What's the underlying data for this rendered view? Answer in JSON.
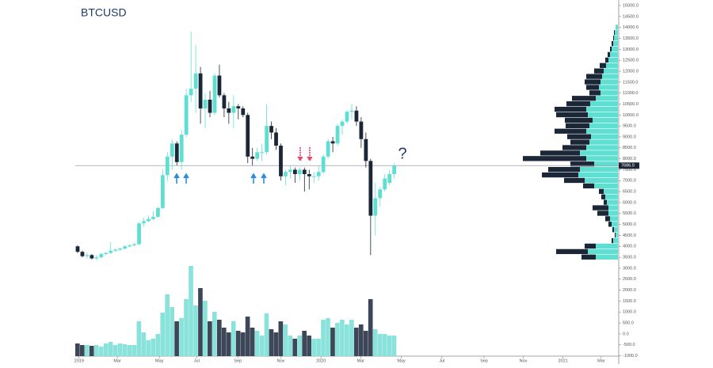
{
  "chart_data": {
    "type": "candlestick",
    "title": "BTCUSD",
    "annotation": "?",
    "last_price": 7686.9,
    "colors": {
      "up": "#5fdfd2",
      "down": "#1b2636",
      "volume_up": "#8ae3db",
      "volume_down": "#3e4757",
      "title": "#1d3b6b",
      "annotation": "#1d3b6b"
    },
    "xlim": [
      -0.5,
      114.5
    ],
    "xticks": [
      {
        "value": 0.3,
        "label": "2019"
      },
      {
        "value": 8.4,
        "label": "Mar"
      },
      {
        "value": 17.3,
        "label": "May"
      },
      {
        "value": 25.2,
        "label": "Jul"
      },
      {
        "value": 33.9,
        "label": "Sep"
      },
      {
        "value": 43,
        "label": "Nov"
      },
      {
        "value": 51.5,
        "label": "2020"
      },
      {
        "value": 59.9,
        "label": "Mar"
      },
      {
        "value": 68.5,
        "label": "May"
      },
      {
        "value": 77.1,
        "label": "Jul"
      },
      {
        "value": 86,
        "label": "Sep"
      },
      {
        "value": 94.3,
        "label": "Nov"
      },
      {
        "value": 102.7,
        "label": "2021"
      },
      {
        "value": 110.8,
        "label": "Mar"
      }
    ],
    "ylim": [
      -1377,
      15253
    ],
    "yticks": [
      {
        "value": 15000,
        "label": "15000.0"
      },
      {
        "value": 14500,
        "label": "14500.0"
      },
      {
        "value": 14000,
        "label": "14000.0"
      },
      {
        "value": 13500,
        "label": "13500.0"
      },
      {
        "value": 13000,
        "label": "13000.0"
      },
      {
        "value": 12500,
        "label": "12500.0"
      },
      {
        "value": 12000,
        "label": "12000.0"
      },
      {
        "value": 11500,
        "label": "11500.0"
      },
      {
        "value": 11000,
        "label": "11000.0"
      },
      {
        "value": 10500,
        "label": "10500.0"
      },
      {
        "value": 10000,
        "label": "10000.0"
      },
      {
        "value": 9500,
        "label": "9500.0"
      },
      {
        "value": 9000,
        "label": "9000.0"
      },
      {
        "value": 8500,
        "label": "8500.0"
      },
      {
        "value": 8000,
        "label": "8000.0"
      },
      {
        "value": 7500,
        "label": "7500.0"
      },
      {
        "value": 7000,
        "label": "7000.0"
      },
      {
        "value": 6500,
        "label": "6500.0"
      },
      {
        "value": 6000,
        "label": "6000.0"
      },
      {
        "value": 5500,
        "label": "5500.0"
      },
      {
        "value": 5000,
        "label": "5000.0"
      },
      {
        "value": 4500,
        "label": "4500.0"
      },
      {
        "value": 4000,
        "label": "4000.0"
      },
      {
        "value": 3500,
        "label": "3500.0"
      },
      {
        "value": 3000,
        "label": "3000.0"
      },
      {
        "value": 2500,
        "label": "2500.0"
      },
      {
        "value": 2000,
        "label": "2000.0"
      },
      {
        "value": 1500,
        "label": "1500.0"
      },
      {
        "value": 1000,
        "label": "1000.0"
      },
      {
        "value": 500,
        "label": "500.0"
      },
      {
        "value": 0,
        "label": "0.0"
      },
      {
        "value": -500,
        "label": "-500.0"
      },
      {
        "value": -1000,
        "label": "-1000.0"
      }
    ],
    "candles": [
      [
        4000,
        4050,
        3700,
        3750
      ],
      [
        3750,
        3800,
        3500,
        3550
      ],
      [
        3550,
        3700,
        3450,
        3600
      ],
      [
        3600,
        3650,
        3400,
        3450
      ],
      [
        3450,
        3600,
        3350,
        3500
      ],
      [
        3500,
        3700,
        3450,
        3650
      ],
      [
        3650,
        3750,
        3600,
        3700
      ],
      [
        3700,
        4200,
        3650,
        3800
      ],
      [
        3800,
        3900,
        3750,
        3850
      ],
      [
        3850,
        3950,
        3800,
        3900
      ],
      [
        3900,
        4050,
        3850,
        4000
      ],
      [
        4000,
        4100,
        3950,
        4050
      ],
      [
        4050,
        4150,
        4000,
        4100
      ],
      [
        4100,
        5100,
        4050,
        5050
      ],
      [
        5050,
        5300,
        4900,
        5150
      ],
      [
        5150,
        5400,
        5100,
        5250
      ],
      [
        5250,
        5600,
        5200,
        5350
      ],
      [
        5350,
        5800,
        5300,
        5750
      ],
      [
        5750,
        7500,
        5700,
        7250
      ],
      [
        7250,
        8300,
        7000,
        8100
      ],
      [
        8100,
        8900,
        7500,
        8700
      ],
      [
        8700,
        8800,
        7700,
        7850
      ],
      [
        7850,
        9300,
        7500,
        9100
      ],
      [
        9100,
        11200,
        9000,
        10900
      ],
      [
        10900,
        13800,
        10600,
        11200
      ],
      [
        11200,
        13200,
        10100,
        11900
      ],
      [
        11900,
        12200,
        9600,
        10300
      ],
      [
        10300,
        11000,
        9400,
        10700
      ],
      [
        10700,
        11100,
        9900,
        10100
      ],
      [
        10100,
        11900,
        10000,
        11800
      ],
      [
        11800,
        12300,
        10800,
        10900
      ],
      [
        10900,
        11000,
        9900,
        10300
      ],
      [
        10300,
        10600,
        9600,
        10100
      ],
      [
        10100,
        10900,
        9400,
        10400
      ],
      [
        10400,
        10500,
        9800,
        10300
      ],
      [
        10300,
        10400,
        9900,
        10000
      ],
      [
        10000,
        10100,
        7800,
        8100
      ],
      [
        8100,
        8500,
        7700,
        8000
      ],
      [
        8000,
        8500,
        7900,
        8300
      ],
      [
        8300,
        8700,
        7900,
        8300
      ],
      [
        8300,
        10500,
        8200,
        9500
      ],
      [
        9500,
        9700,
        8900,
        9200
      ],
      [
        9200,
        9400,
        8400,
        8600
      ],
      [
        8600,
        8700,
        7000,
        7200
      ],
      [
        7200,
        7500,
        6800,
        7400
      ],
      [
        7400,
        7700,
        7100,
        7500
      ],
      [
        7500,
        7600,
        6900,
        7300
      ],
      [
        7300,
        7600,
        7000,
        7500
      ],
      [
        7500,
        7600,
        6500,
        7300
      ],
      [
        7300,
        7500,
        6600,
        7200
      ],
      [
        7200,
        7400,
        6900,
        7200
      ],
      [
        7200,
        7700,
        7000,
        7400
      ],
      [
        7400,
        8200,
        7300,
        8100
      ],
      [
        8100,
        8900,
        8000,
        8800
      ],
      [
        8800,
        9000,
        8300,
        8700
      ],
      [
        8700,
        9600,
        8600,
        9500
      ],
      [
        9500,
        9800,
        9100,
        9700
      ],
      [
        9700,
        10200,
        9600,
        10150
      ],
      [
        10150,
        10500,
        9800,
        10200
      ],
      [
        10200,
        10400,
        9500,
        9700
      ],
      [
        9700,
        9900,
        8500,
        8900
      ],
      [
        8900,
        9200,
        7600,
        7900
      ],
      [
        7900,
        8000,
        3600,
        5400
      ],
      [
        5400,
        6900,
        4500,
        6200
      ],
      [
        6200,
        6700,
        5800,
        6600
      ],
      [
        6600,
        7300,
        6500,
        7100
      ],
      [
        6900,
        7500,
        6800,
        7300
      ],
      [
        7300,
        7800,
        7100,
        7686.9
      ]
    ],
    "y2lim": [
      0,
      120
    ],
    "volume": [
      16,
      14,
      14,
      13,
      14,
      12,
      16,
      18,
      14,
      16,
      15,
      14,
      14,
      44,
      30,
      20,
      22,
      28,
      55,
      78,
      62,
      44,
      48,
      72,
      114,
      64,
      86,
      70,
      44,
      56,
      46,
      36,
      30,
      44,
      32,
      30,
      50,
      36,
      32,
      26,
      54,
      34,
      30,
      44,
      40,
      26,
      22,
      26,
      32,
      26,
      22,
      22,
      46,
      48,
      36,
      42,
      46,
      40,
      46,
      36,
      40,
      32,
      72,
      34,
      28,
      28,
      26,
      26
    ],
    "plim": [
      0,
      130
    ],
    "profile": {
      "levels": [
        14000,
        13750,
        13500,
        13250,
        13000,
        12750,
        12500,
        12250,
        12000,
        11750,
        11500,
        11250,
        11000,
        10750,
        10500,
        10250,
        10000,
        9750,
        9500,
        9250,
        9000,
        8750,
        8500,
        8250,
        8000,
        7750,
        7500,
        7250,
        7000,
        6750,
        6500,
        6250,
        6000,
        5750,
        5500,
        5250,
        5000,
        4750,
        4500,
        4250,
        4000,
        3750,
        3500
      ],
      "up": [
        3,
        4,
        5,
        6,
        8,
        10,
        12,
        15,
        18,
        20,
        22,
        24,
        22,
        28,
        35,
        40,
        38,
        32,
        36,
        40,
        34,
        36,
        40,
        48,
        40,
        30,
        48,
        50,
        42,
        30,
        18,
        16,
        14,
        12,
        12,
        10,
        8,
        5,
        3,
        6,
        28,
        38,
        28
      ],
      "down": [
        0,
        1,
        1,
        2,
        2,
        3,
        4,
        8,
        12,
        20,
        20,
        16,
        14,
        30,
        30,
        40,
        40,
        35,
        30,
        40,
        30,
        24,
        30,
        50,
        80,
        30,
        40,
        46,
        26,
        14,
        6,
        5,
        4,
        20,
        14,
        6,
        4,
        2,
        1,
        2,
        14,
        40,
        18
      ]
    }
  }
}
